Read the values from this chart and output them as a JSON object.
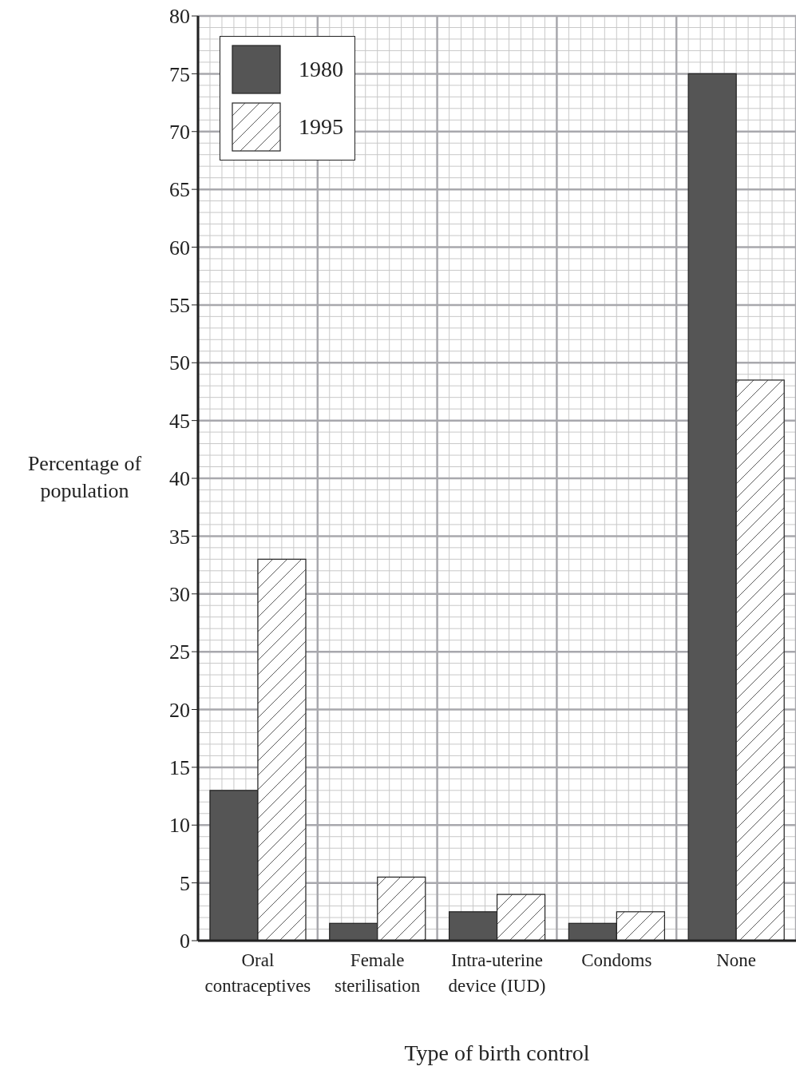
{
  "chart_data": {
    "type": "bar",
    "xlabel": "Type of birth control",
    "ylabel": "Percentage of population",
    "categories": [
      "Oral contraceptives",
      "Female sterilisation",
      "Intra-uterine device (IUD)",
      "Condoms",
      "None"
    ],
    "series": [
      {
        "name": "1980",
        "color": "#555555",
        "values": [
          13,
          1.5,
          2.5,
          1.5,
          75
        ]
      },
      {
        "name": "1995",
        "color": "#ffffff",
        "values": [
          33,
          5.5,
          4,
          2.5,
          48.5
        ]
      }
    ],
    "ylim": [
      0,
      80
    ],
    "yticks": [
      0,
      5,
      10,
      15,
      20,
      25,
      30,
      35,
      40,
      45,
      50,
      55,
      60,
      65,
      70,
      75,
      80
    ],
    "grid": true,
    "legend": "top left"
  }
}
